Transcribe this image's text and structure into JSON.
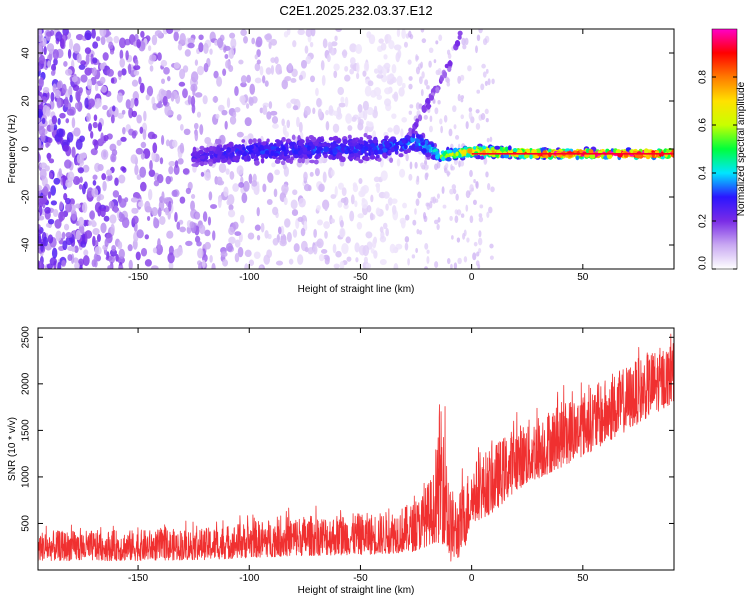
{
  "chart_data": [
    {
      "type": "scatter",
      "subtype": "spectrogram",
      "title": "C2E1.2025.232.03.37.E12",
      "xlabel": "Height of straight line (km)",
      "ylabel": "Frequency (Hz)",
      "xlim": [
        -195,
        91
      ],
      "ylim": [
        -50,
        50
      ],
      "xticks": [
        -150,
        -100,
        -50,
        0,
        50
      ],
      "yticks": [
        -40,
        -20,
        0,
        20,
        40
      ],
      "colorbar": {
        "label": "Normalized spectral amplitude",
        "range": [
          0,
          1
        ],
        "ticks": [
          0.0,
          0.2,
          0.4,
          0.6,
          0.8
        ],
        "tick_labels": [
          "0.0",
          "0.2",
          "0.4",
          "0.6",
          "0.8"
        ],
        "colors": [
          "#ffffff",
          "#c9a9f2",
          "#7a2ce6",
          "#2b16ff",
          "#00e6ff",
          "#00ff3c",
          "#c8ff00",
          "#ffe100",
          "#ff7a00",
          "#ff0000",
          "#ff00c8"
        ]
      },
      "features": {
        "noise_region_x": [
          -195,
          -30
        ],
        "carrier_band": [
          {
            "x": -125,
            "center_hz": -3,
            "width_hz": 7,
            "amplitude": 0.25
          },
          {
            "x": -100,
            "center_hz": -1,
            "width_hz": 9,
            "amplitude": 0.3
          },
          {
            "x": -70,
            "center_hz": 0,
            "width_hz": 9,
            "amplitude": 0.3
          },
          {
            "x": -45,
            "center_hz": 0,
            "width_hz": 9,
            "amplitude": 0.32
          },
          {
            "x": -25,
            "center_hz": 3,
            "width_hz": 8,
            "amplitude": 0.35
          },
          {
            "x": -18,
            "center_hz": 0,
            "width_hz": 6,
            "amplitude": 0.4
          },
          {
            "x": -15,
            "center_hz": -3,
            "width_hz": 4,
            "amplitude": 0.5
          },
          {
            "x": 0,
            "center_hz": -1,
            "width_hz": 4,
            "amplitude": 0.7
          },
          {
            "x": 30,
            "center_hz": -2,
            "width_hz": 3,
            "amplitude": 0.85
          },
          {
            "x": 60,
            "center_hz": -2,
            "width_hz": 3,
            "amplitude": 0.95
          },
          {
            "x": 91,
            "center_hz": -2,
            "width_hz": 3,
            "amplitude": 0.95
          }
        ],
        "diagonal_streak": [
          {
            "x": -30,
            "y": 2
          },
          {
            "x": -20,
            "y": 18
          },
          {
            "x": -10,
            "y": 35
          },
          {
            "x": -5,
            "y": 48
          }
        ]
      }
    },
    {
      "type": "line",
      "title": "",
      "xlabel": "Height of straight line (km)",
      "ylabel": "SNR (10 * v/v)",
      "xlim": [
        -195,
        91
      ],
      "ylim": [
        0,
        2600
      ],
      "xticks": [
        -150,
        -100,
        -50,
        0,
        50
      ],
      "yticks": [
        500,
        1000,
        1500,
        2000,
        2500
      ],
      "series": [
        {
          "name": "SNR",
          "color": "#f03030",
          "envelope": {
            "x": [
              -195,
              -150,
              -120,
              -100,
              -80,
              -60,
              -40,
              -25,
              -20,
              -16,
              -14,
              -12,
              -10,
              -6,
              -3,
              0,
              10,
              20,
              40,
              60,
              80,
              91
            ],
            "lower": [
              100,
              100,
              110,
              130,
              150,
              160,
              170,
              200,
              260,
              300,
              280,
              280,
              80,
              120,
              240,
              500,
              620,
              860,
              1100,
              1350,
              1650,
              1800
            ],
            "upper": [
              420,
              430,
              450,
              520,
              580,
              600,
              620,
              730,
              930,
              1100,
              2000,
              1900,
              900,
              800,
              1000,
              1150,
              1350,
              1550,
              1800,
              2050,
              2350,
              2450
            ]
          }
        }
      ]
    }
  ]
}
